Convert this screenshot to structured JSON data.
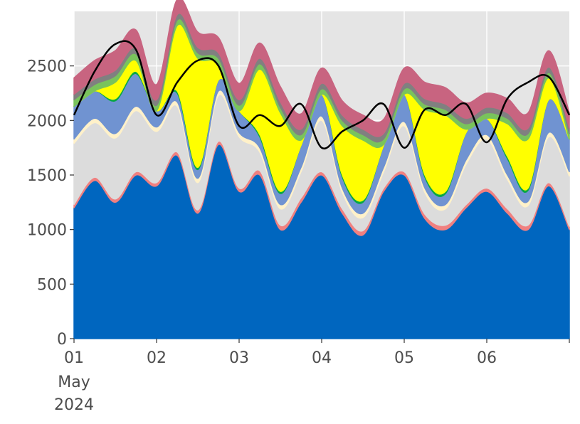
{
  "chart_data": {
    "type": "area",
    "stacked": true,
    "title": "",
    "xlabel": "",
    "ylabel": "",
    "grid": true,
    "background": "#e5e5e5",
    "grid_color": "#ffffff",
    "x_unit": "day of May 2024",
    "xlim": [
      1,
      7
    ],
    "ylim": [
      0,
      3000
    ],
    "x_ticks": [
      {
        "value": 1,
        "label": "01"
      },
      {
        "value": 2,
        "label": "02"
      },
      {
        "value": 3,
        "label": "03"
      },
      {
        "value": 4,
        "label": "04"
      },
      {
        "value": 5,
        "label": "05"
      },
      {
        "value": 6,
        "label": "06"
      }
    ],
    "x_subtick_label": "May",
    "x_year_label": "2024",
    "y_ticks": [
      {
        "value": 0,
        "label": "0"
      },
      {
        "value": 500,
        "label": "500"
      },
      {
        "value": 1000,
        "label": "1000"
      },
      {
        "value": 1500,
        "label": "1500"
      },
      {
        "value": 2000,
        "label": "2000"
      },
      {
        "value": 2500,
        "label": "2500"
      }
    ],
    "x": [
      1.0,
      1.25,
      1.5,
      1.75,
      2.0,
      2.25,
      2.5,
      2.75,
      3.0,
      3.25,
      3.5,
      3.75,
      4.0,
      4.25,
      4.5,
      4.75,
      5.0,
      5.25,
      5.5,
      5.75,
      6.0,
      6.25,
      6.5,
      6.75,
      7.0
    ],
    "series": [
      {
        "color": "#0066bf",
        "edge": "#0066bf",
        "values": [
          1200,
          1450,
          1250,
          1500,
          1400,
          1680,
          1150,
          1780,
          1350,
          1500,
          1000,
          1250,
          1500,
          1150,
          950,
          1350,
          1500,
          1100,
          1000,
          1200,
          1350,
          1150,
          1000,
          1400,
          1000
        ]
      },
      {
        "color": "#f08080",
        "edge": "#f08080",
        "values": [
          30,
          30,
          30,
          30,
          30,
          30,
          30,
          30,
          30,
          40,
          40,
          40,
          30,
          40,
          40,
          30,
          30,
          40,
          40,
          30,
          30,
          40,
          40,
          30,
          30
        ]
      },
      {
        "color": "#dcdcdc",
        "edge": "#dcdcdc",
        "values": [
          560,
          500,
          560,
          560,
          470,
          420,
          250,
          420,
          470,
          170,
          150,
          240,
          470,
          150,
          120,
          150,
          420,
          200,
          150,
          370,
          450,
          270,
          180,
          420,
          460
        ]
      },
      {
        "color": "#fff1c9",
        "edge": "#fff1c9",
        "values": [
          40,
          40,
          40,
          40,
          40,
          40,
          40,
          40,
          40,
          40,
          40,
          40,
          40,
          40,
          40,
          40,
          40,
          40,
          40,
          40,
          40,
          40,
          40,
          40,
          40
        ]
      },
      {
        "color": "#7093d1",
        "edge": "#7093d1",
        "values": [
          300,
          250,
          300,
          300,
          150,
          80,
          80,
          100,
          200,
          100,
          100,
          200,
          200,
          100,
          100,
          200,
          250,
          100,
          100,
          250,
          150,
          150,
          100,
          300,
          300
        ]
      },
      {
        "color": "#08a745",
        "edge": "#08a745",
        "values": [
          0,
          0,
          20,
          20,
          0,
          20,
          20,
          0,
          0,
          20,
          20,
          0,
          0,
          20,
          20,
          0,
          0,
          20,
          20,
          0,
          0,
          20,
          20,
          0,
          0
        ]
      },
      {
        "color": "#ffff00",
        "edge": "#ffff00",
        "values": [
          0,
          0,
          150,
          100,
          0,
          600,
          1000,
          150,
          0,
          600,
          720,
          50,
          0,
          450,
          550,
          10,
          0,
          600,
          700,
          30,
          0,
          300,
          450,
          200,
          0
        ]
      },
      {
        "color": "#79c35c",
        "edge": "#79c35c",
        "values": [
          60,
          60,
          60,
          60,
          50,
          50,
          50,
          50,
          50,
          50,
          50,
          50,
          50,
          50,
          50,
          50,
          50,
          50,
          50,
          50,
          50,
          50,
          50,
          50,
          50
        ]
      },
      {
        "color": "#808080",
        "edge": "#808080",
        "values": [
          50,
          50,
          50,
          50,
          50,
          50,
          50,
          50,
          50,
          50,
          50,
          50,
          50,
          50,
          50,
          50,
          50,
          50,
          50,
          50,
          50,
          50,
          50,
          50,
          50
        ]
      },
      {
        "color": "#c86480",
        "edge": "#c86480",
        "values": [
          150,
          170,
          180,
          170,
          140,
          140,
          140,
          140,
          150,
          140,
          140,
          140,
          140,
          130,
          130,
          130,
          140,
          150,
          150,
          140,
          130,
          130,
          140,
          150,
          140
        ]
      }
    ],
    "line": {
      "color": "#000000",
      "values": [
        2050,
        2450,
        2700,
        2650,
        2050,
        2350,
        2550,
        2500,
        1950,
        2050,
        1950,
        2150,
        1750,
        1900,
        2000,
        2150,
        1750,
        2100,
        2050,
        2150,
        1800,
        2200,
        2350,
        2400,
        2050
      ]
    }
  }
}
